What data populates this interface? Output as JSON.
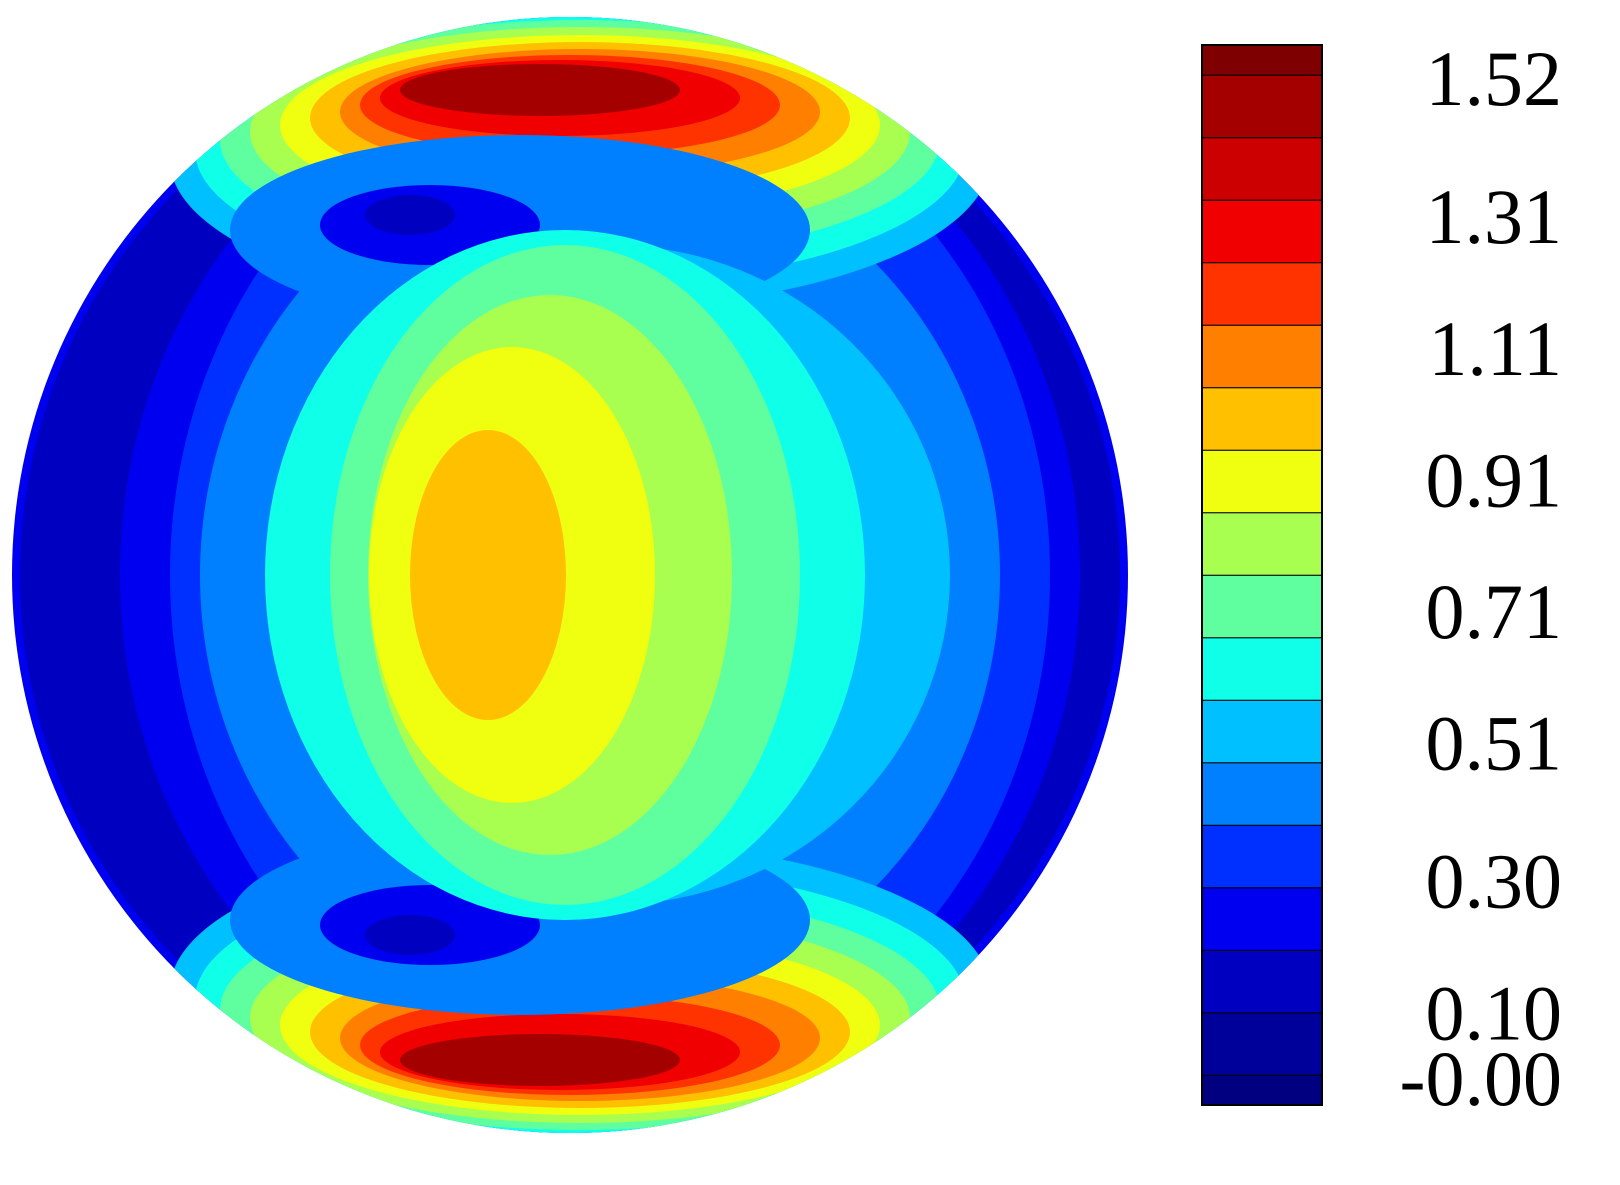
{
  "chart_data": {
    "type": "contour",
    "clim": [
      -0.027,
      1.584
    ],
    "levels": [
      1.538,
      1.443,
      1.348,
      1.253,
      1.158,
      1.063,
      0.968,
      0.873,
      0.778,
      0.683,
      0.588,
      0.493,
      0.398,
      0.303,
      0.208,
      0.113,
      0.018
    ],
    "colors": [
      "#7f0000",
      "#a50000",
      "#cc0000",
      "#f00000",
      "#ff3300",
      "#ff7f00",
      "#ffc000",
      "#f0ff10",
      "#a8ff50",
      "#5fff9f",
      "#10ffe8",
      "#00c0ff",
      "#0080ff",
      "#0030ff",
      "#0000f0",
      "#0000c0",
      "#00009a",
      "#000080"
    ],
    "ticks": [
      1.52,
      1.31,
      1.11,
      0.91,
      0.71,
      {
        "value": 0.51,
        "label": "0.51"
      },
      {
        "value": 0.3,
        "label": "0.30"
      },
      {
        "value": 0.1,
        "label": "0.10"
      },
      {
        "value": 0,
        "label": "-0.00"
      }
    ]
  }
}
